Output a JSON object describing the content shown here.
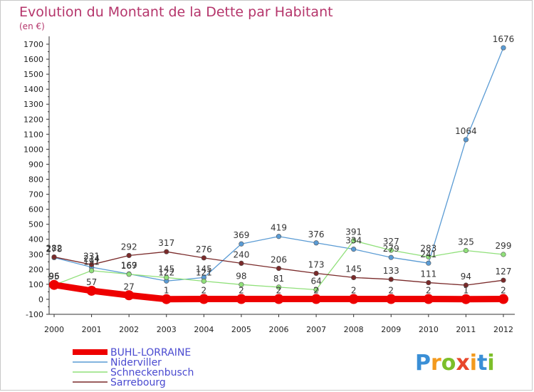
{
  "title": "Evolution du Montant de la Dette par Habitant",
  "subtitle": "(en €)",
  "logo_text": "Proxiti",
  "chart_data": {
    "type": "line",
    "x": [
      "2000",
      "2001",
      "2002",
      "2003",
      "2004",
      "2005",
      "2006",
      "2007",
      "2008",
      "2009",
      "2010",
      "2011",
      "2012"
    ],
    "ylim": [
      -100,
      1700
    ],
    "yticks": [
      -100,
      0,
      100,
      200,
      300,
      400,
      500,
      600,
      700,
      800,
      900,
      1000,
      1100,
      1200,
      1300,
      1400,
      1500,
      1600,
      1700
    ],
    "grid": false,
    "legend_position": "bottom-left",
    "series": [
      {
        "name": "BUHL-LORRAINE",
        "color": "#ee0000",
        "values": [
          96,
          57,
          27,
          1,
          2,
          2,
          2,
          2,
          2,
          2,
          2,
          1,
          2
        ],
        "labels": [
          "96",
          "57",
          "27",
          "1",
          "2",
          "2",
          "2",
          "2",
          "2",
          "2",
          "2",
          "1",
          "2"
        ]
      },
      {
        "name": "Niderviller",
        "color": "#5a9bd4",
        "values": [
          278,
          214,
          169,
          122,
          145,
          369,
          419,
          376,
          334,
          279,
          241,
          1064,
          1676
        ],
        "labels": [
          "278",
          "214",
          "169",
          "122",
          "145",
          "369",
          "419",
          "376",
          "334",
          "279",
          "241",
          "1064",
          "1676"
        ]
      },
      {
        "name": "Schneckenbusch",
        "color": "#90e07a",
        "values": [
          95,
          191,
          167,
          145,
          121,
          98,
          81,
          64,
          391,
          327,
          283,
          325,
          299
        ],
        "labels": [
          "95",
          "191",
          "167",
          "145",
          "121",
          "98",
          "81",
          "64",
          "391",
          "327",
          "283",
          "325",
          "299"
        ]
      },
      {
        "name": "Sarrebourg",
        "color": "#7a2a2a",
        "values": [
          282,
          231,
          292,
          317,
          276,
          240,
          206,
          173,
          145,
          133,
          111,
          94,
          127
        ],
        "labels": [
          "282",
          "231",
          "292",
          "317",
          "276",
          "240",
          "206",
          "173",
          "145",
          "133",
          "111",
          "94",
          "127"
        ]
      }
    ]
  }
}
